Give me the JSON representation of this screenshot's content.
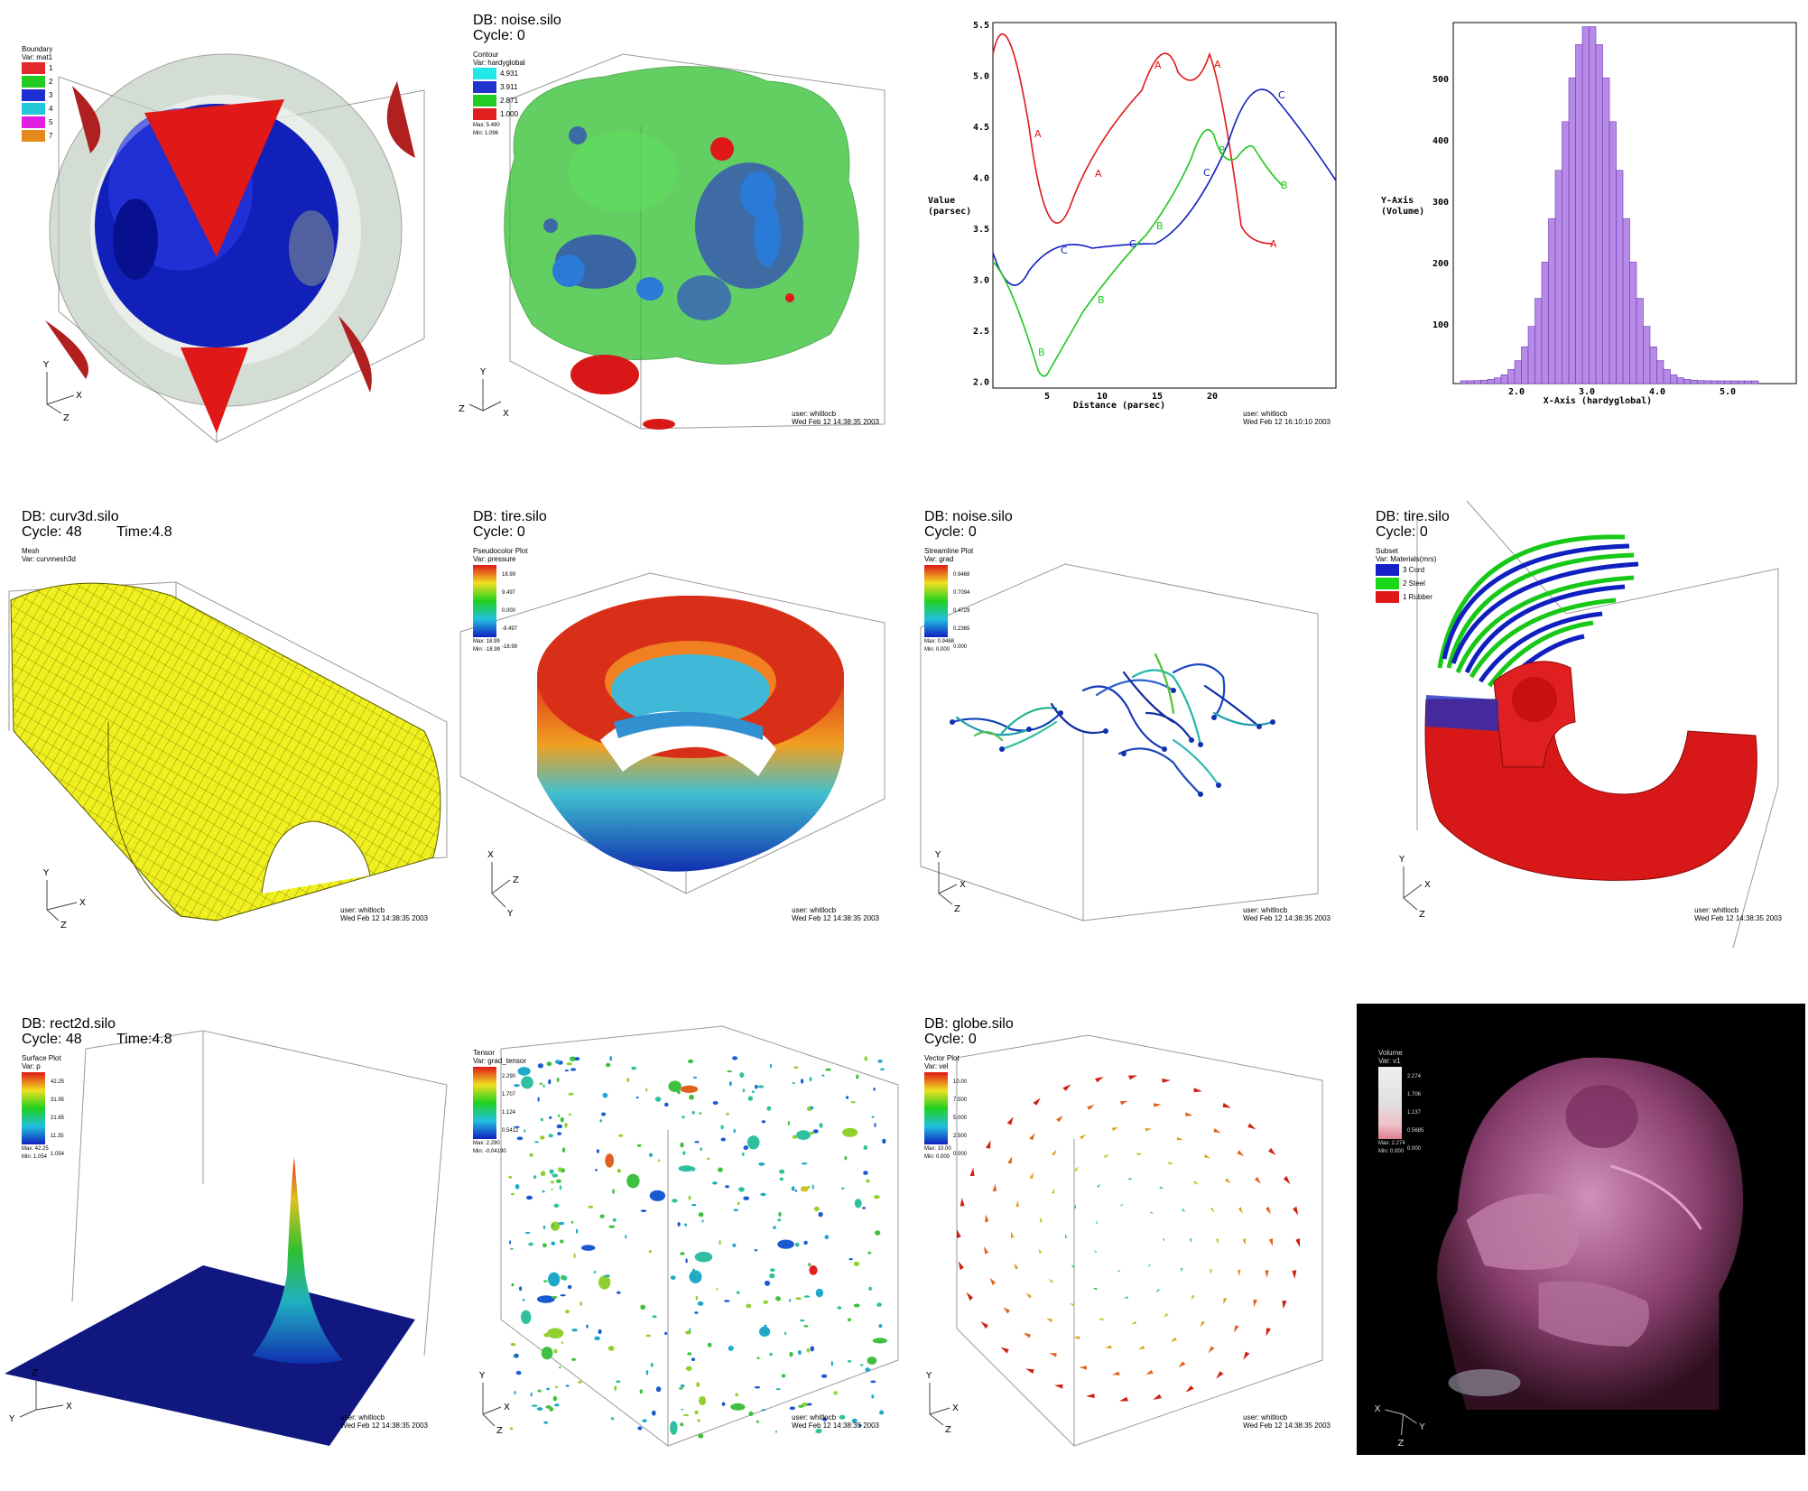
{
  "panels": {
    "p1": {
      "legend_title": "Boundary",
      "legend_var": "Var: mat1",
      "legend_items": [
        {
          "label": "1",
          "color": "#e5282d"
        },
        {
          "label": "2",
          "color": "#22cc22"
        },
        {
          "label": "3",
          "color": "#1d2fd0"
        },
        {
          "label": "4",
          "color": "#22c8d8"
        },
        {
          "label": "5",
          "color": "#e020e0"
        },
        {
          "label": "7",
          "color": "#e58a1a"
        }
      ],
      "axes": {
        "y": "Y",
        "x": "X",
        "z": "Z"
      }
    },
    "p2": {
      "db": "DB: noise.silo",
      "cycle": "Cycle: 0",
      "legend_title": "Contour",
      "legend_var": "Var: hardyglobal",
      "legend_items": [
        {
          "label": "4.931",
          "color": "#22e8e8"
        },
        {
          "label": "3.911",
          "color": "#2233cc"
        },
        {
          "label": "2.871",
          "color": "#22cc22"
        },
        {
          "label": "1.000",
          "color": "#e01f1f"
        }
      ],
      "max": "Max: 5.490",
      "min": "Min: 1.096",
      "axes": {
        "y": "Y",
        "x": "X",
        "z": "Z"
      },
      "user": "user: whitlocb",
      "date": "Wed Feb 12 14:38:35 2003"
    },
    "p3": {
      "ylabel_line1": "Value",
      "ylabel_line2": "(parsec)",
      "xlabel": "Distance (parsec)",
      "yticks": [
        "5.5",
        "5.0",
        "4.5",
        "4.0",
        "3.5",
        "3.0",
        "2.5",
        "2.0"
      ],
      "xticks": [
        "5",
        "10",
        "15",
        "20"
      ],
      "user": "user: whitlocb",
      "date": "Wed Feb 12 16:10:10 2003"
    },
    "p4": {
      "ylabel_line1": "Y-Axis",
      "ylabel_line2": "(Volume)",
      "xlabel": "X-Axis (hardyglobal)",
      "yticks": [
        "500",
        "400",
        "300",
        "200",
        "100"
      ],
      "xticks": [
        "2.0",
        "3.0",
        "4.0",
        "5.0"
      ]
    },
    "p5": {
      "db": "DB: curv3d.silo",
      "cycle": "Cycle: 48",
      "time": "Time:4.8",
      "legend_title": "Mesh",
      "legend_var": "Var: curvmesh3d",
      "axes": {
        "y": "Y",
        "x": "X",
        "z": "Z"
      },
      "user": "user: whitlocb",
      "date": "Wed Feb 12 14:38:35 2003"
    },
    "p6": {
      "db": "DB: tire.silo",
      "cycle": "Cycle: 0",
      "legend_title": "Pseudocolor Plot",
      "legend_var": "Var: pressure",
      "ticks": [
        "18.99",
        "9.497",
        "0.000",
        "-9.497",
        "-18.99"
      ],
      "max": "Max: 18.99",
      "min": "Min: -18.99",
      "axes": {
        "x": "X",
        "z": "Z",
        "y": "Y"
      },
      "user": "user: whitlocb",
      "date": "Wed Feb 12 14:38:35 2003"
    },
    "p7": {
      "db": "DB: noise.silo",
      "cycle": "Cycle: 0",
      "legend_title": "Streamline Plot",
      "legend_var": "Var: grad",
      "ticks": [
        "0.9468",
        "0.7094",
        "0.4729",
        "0.2365",
        "0.000"
      ],
      "max": "Max: 0.9468",
      "min": "Min: 0.000",
      "axes": {
        "y": "Y",
        "x": "X",
        "z": "Z"
      },
      "user": "user: whitlocb",
      "date": "Wed Feb 12 14:38:35 2003"
    },
    "p8": {
      "db": "DB: tire.silo",
      "cycle": "Cycle: 0",
      "legend_title": "Subset",
      "legend_var": "Var: Materials(mrs)",
      "legend_items": [
        {
          "label": "3 Cord",
          "color": "#1420c8"
        },
        {
          "label": "2 Steel",
          "color": "#18d818"
        },
        {
          "label": "1 Rubber",
          "color": "#e01818"
        }
      ],
      "axes": {
        "y": "Y",
        "x": "X",
        "z": "Z"
      },
      "user": "user: whitlocb",
      "date": "Wed Feb 12 14:38:35 2003"
    },
    "p9": {
      "db": "DB: rect2d.silo",
      "cycle": "Cycle: 48",
      "time": "Time:4.8",
      "legend_title": "Surface Plot",
      "legend_var": "Var: p",
      "ticks": [
        "42.25",
        "31.95",
        "21.65",
        "11.35",
        "1.054"
      ],
      "max": "Max: 42.25",
      "min": "Min: 1.054",
      "axes": {
        "z": "Z",
        "y": "Y",
        "x": "X"
      },
      "user": "user: whitlocb",
      "date": "Wed Feb 12 14:38:35 2003"
    },
    "p10": {
      "legend_title": "Tensor",
      "legend_var": "Var: grad_tensor",
      "ticks": [
        "2.290",
        "1.707",
        "1.124",
        "0.5412"
      ],
      "max": "Max: 2.290",
      "min": "Min: -0.04190",
      "axes": {
        "y": "Y",
        "x": "X",
        "z": "Z"
      },
      "user": "user: whitlocb",
      "date": "Wed Feb 12 14:38:35 2003"
    },
    "p11": {
      "db": "DB: globe.silo",
      "cycle": "Cycle: 0",
      "legend_title": "Vector Plot",
      "legend_var": "Var: vel",
      "ticks": [
        "10.00",
        "7.500",
        "5.000",
        "2.500",
        "0.000"
      ],
      "max": "Max: 10.00",
      "min": "Min: 0.000",
      "axes": {
        "y": "Y",
        "x": "X",
        "z": "Z"
      },
      "user": "user: whitlocb",
      "date": "Wed Feb 12 14:38:35 2003"
    },
    "p12": {
      "legend_title": "Volume",
      "legend_var": "Var: v1",
      "ticks": [
        "2.274",
        "1.706",
        "1.137",
        "0.5685",
        "0.000"
      ],
      "max": "Max: 2.274",
      "min": "Min: 0.000",
      "axes": {
        "x": "X",
        "y": "Y",
        "z": "Z"
      }
    }
  }
}
